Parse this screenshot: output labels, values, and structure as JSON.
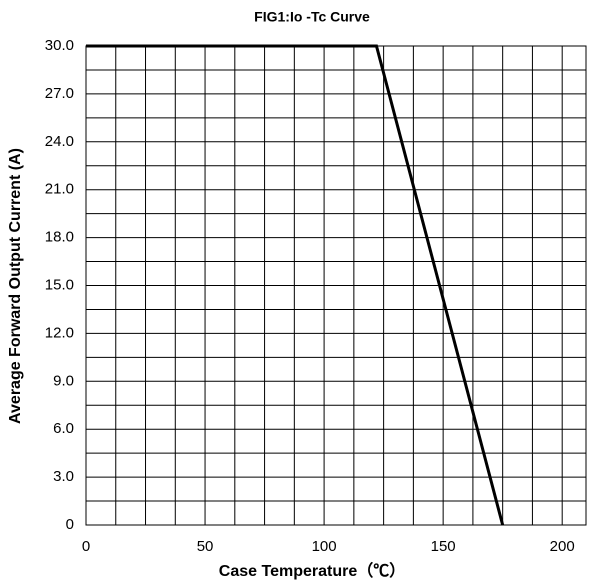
{
  "chart_data": {
    "type": "line",
    "title": "FIG1:Io -Tc Curve",
    "xlabel": "Case Temperature（℃）",
    "ylabel": "Average Forward Output Current (A)",
    "x": [
      0,
      122,
      175
    ],
    "series": [
      {
        "name": "Io",
        "color": "#000000",
        "values": [
          30,
          30,
          0
        ]
      }
    ],
    "xlim": [
      0,
      210
    ],
    "xticks": [
      0,
      50,
      100,
      150,
      200
    ],
    "ylim": [
      0,
      30
    ],
    "yticks": [
      0,
      {
        "value": 3,
        "label": "3.0"
      },
      {
        "value": 6,
        "label": "6.0"
      },
      {
        "value": 9,
        "label": "9.0"
      },
      {
        "value": 12,
        "label": "12.0"
      },
      {
        "value": 15,
        "label": "15.0"
      },
      {
        "value": 18,
        "label": "18.0"
      },
      {
        "value": 21,
        "label": "21.0"
      },
      {
        "value": 24,
        "label": "24.0"
      },
      {
        "value": 27,
        "label": "27.0"
      },
      {
        "value": 30,
        "label": "30.0"
      }
    ],
    "grid": true
  }
}
